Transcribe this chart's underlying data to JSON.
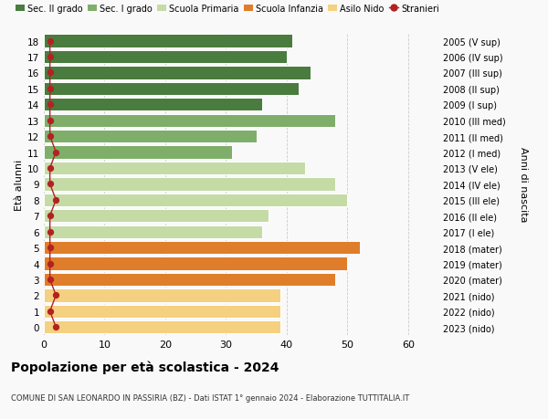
{
  "ages": [
    18,
    17,
    16,
    15,
    14,
    13,
    12,
    11,
    10,
    9,
    8,
    7,
    6,
    5,
    4,
    3,
    2,
    1,
    0
  ],
  "years": [
    "2005 (V sup)",
    "2006 (IV sup)",
    "2007 (III sup)",
    "2008 (II sup)",
    "2009 (I sup)",
    "2010 (III med)",
    "2011 (II med)",
    "2012 (I med)",
    "2013 (V ele)",
    "2014 (IV ele)",
    "2015 (III ele)",
    "2016 (II ele)",
    "2017 (I ele)",
    "2018 (mater)",
    "2019 (mater)",
    "2020 (mater)",
    "2021 (nido)",
    "2022 (nido)",
    "2023 (nido)"
  ],
  "values": [
    41,
    40,
    44,
    42,
    36,
    48,
    35,
    31,
    43,
    48,
    50,
    37,
    36,
    52,
    50,
    48,
    39,
    39,
    39
  ],
  "stranieri": [
    1,
    1,
    1,
    1,
    1,
    1,
    1,
    2,
    1,
    1,
    2,
    1,
    1,
    1,
    1,
    1,
    2,
    1,
    2
  ],
  "colors": {
    "sec2": "#4a7c3f",
    "sec1": "#7fae6a",
    "primaria": "#c5dba6",
    "infanzia": "#e07d2a",
    "nido": "#f5d080",
    "stranieri": "#b22222"
  },
  "bar_colors": [
    "#4a7c3f",
    "#4a7c3f",
    "#4a7c3f",
    "#4a7c3f",
    "#4a7c3f",
    "#7fae6a",
    "#7fae6a",
    "#7fae6a",
    "#c5dba6",
    "#c5dba6",
    "#c5dba6",
    "#c5dba6",
    "#c5dba6",
    "#e07d2a",
    "#e07d2a",
    "#e07d2a",
    "#f5d080",
    "#f5d080",
    "#f5d080"
  ],
  "ylabel_left": "Età alunni",
  "ylabel_right": "Anni di nascita",
  "xlim": [
    0,
    65
  ],
  "xticks": [
    0,
    10,
    20,
    30,
    40,
    50,
    60
  ],
  "title": "Popolazione per età scolastica - 2024",
  "subtitle": "COMUNE DI SAN LEONARDO IN PASSIRIA (BZ) - Dati ISTAT 1° gennaio 2024 - Elaborazione TUTTITALIA.IT",
  "legend_labels": [
    "Sec. II grado",
    "Sec. I grado",
    "Scuola Primaria",
    "Scuola Infanzia",
    "Asilo Nido",
    "Stranieri"
  ],
  "legend_colors": [
    "#4a7c3f",
    "#7fae6a",
    "#c5dba6",
    "#e07d2a",
    "#f5d080",
    "#b22222"
  ],
  "bg_color": "#f9f9f9",
  "bar_height": 0.82,
  "grid_color": "#cccccc"
}
